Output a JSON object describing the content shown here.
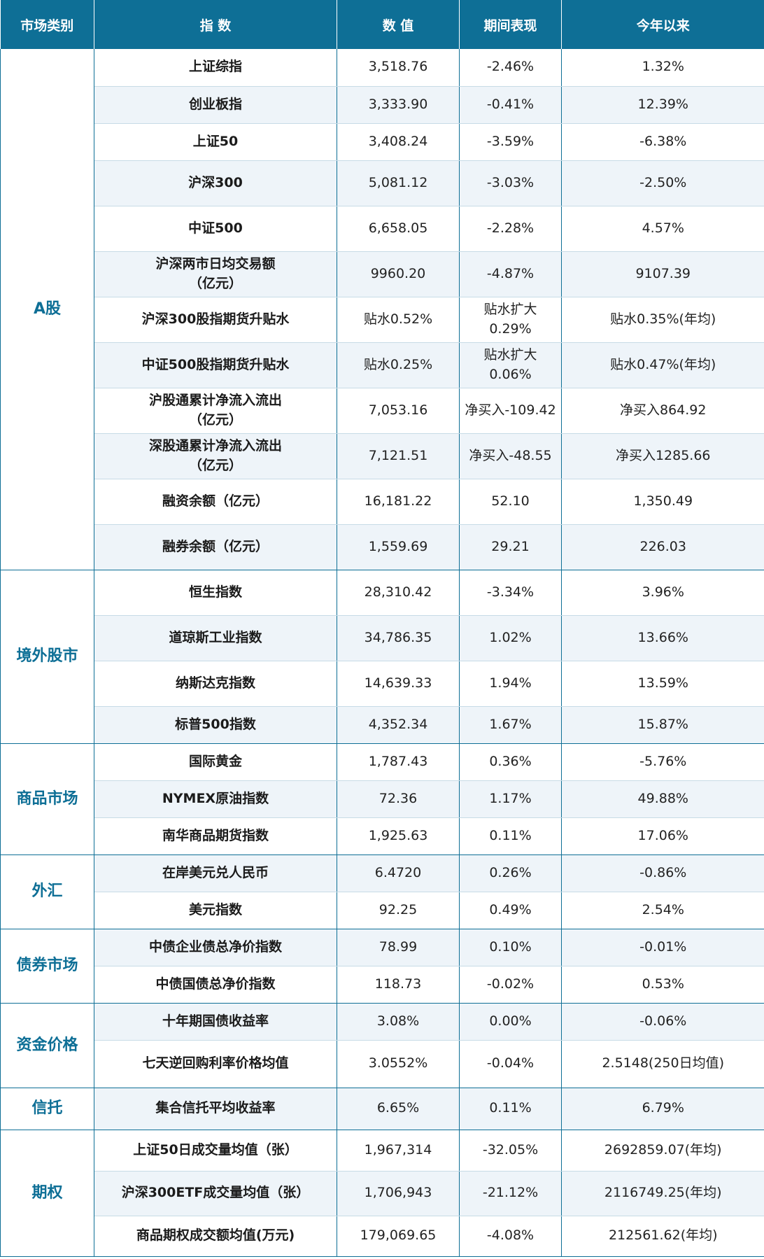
{
  "headers": [
    "市场类别",
    "指 数",
    "数 值",
    "期间表现",
    "今年以来"
  ],
  "groups": [
    {
      "category": "A股",
      "rows": [
        {
          "h": 53,
          "cells": [
            "上证综指",
            "3,518.76",
            "-2.46%",
            "1.32%"
          ]
        },
        {
          "h": 53,
          "cells": [
            "创业板指",
            "3,333.90",
            "-0.41%",
            "12.39%"
          ]
        },
        {
          "h": 53,
          "cells": [
            "上证50",
            "3,408.24",
            "-3.59%",
            "-6.38%"
          ]
        },
        {
          "h": 65,
          "cells": [
            "沪深300",
            "5,081.12",
            "-3.03%",
            "-2.50%"
          ]
        },
        {
          "h": 65,
          "cells": [
            "中证500",
            "6,658.05",
            "-2.28%",
            "4.57%"
          ]
        },
        {
          "h": 65,
          "cells": [
            "沪深两市日均交易额\n（亿元）",
            "9960.20",
            "-4.87%",
            "9107.39"
          ]
        },
        {
          "h": 65,
          "cells": [
            "沪深300股指期货升贴水",
            "贴水0.52%",
            "贴水扩大\n0.29%",
            "贴水0.35%(年均)"
          ]
        },
        {
          "h": 65,
          "cells": [
            "中证500股指期货升贴水",
            "贴水0.25%",
            "贴水扩大\n0.06%",
            "贴水0.47%(年均)"
          ]
        },
        {
          "h": 65,
          "cells": [
            "沪股通累计净流入流出\n（亿元）",
            "7,053.16",
            "净买入-109.42",
            "净买入864.92"
          ]
        },
        {
          "h": 65,
          "cells": [
            "深股通累计净流入流出\n（亿元）",
            "7,121.51",
            "净买入-48.55",
            "净买入1285.66"
          ]
        },
        {
          "h": 65,
          "cells": [
            "融资余额（亿元）",
            "16,181.22",
            "52.10",
            "1,350.49"
          ]
        },
        {
          "h": 65,
          "cells": [
            "融券余额（亿元）",
            "1,559.69",
            "29.21",
            "226.03"
          ]
        }
      ]
    },
    {
      "category": "境外股市",
      "rows": [
        {
          "h": 65,
          "cells": [
            "恒生指数",
            "28,310.42",
            "-3.34%",
            "3.96%"
          ]
        },
        {
          "h": 65,
          "cells": [
            "道琼斯工业指数",
            "34,786.35",
            "1.02%",
            "13.66%"
          ]
        },
        {
          "h": 65,
          "cells": [
            "纳斯达克指数",
            "14,639.33",
            "1.94%",
            "13.59%"
          ]
        },
        {
          "h": 53,
          "cells": [
            "标普500指数",
            "4,352.34",
            "1.67%",
            "15.87%"
          ]
        }
      ]
    },
    {
      "category": "商品市场",
      "rows": [
        {
          "h": 53,
          "cells": [
            "国际黄金",
            "1,787.43",
            "0.36%",
            "-5.76%"
          ]
        },
        {
          "h": 53,
          "cells": [
            "NYMEX原油指数",
            "72.36",
            "1.17%",
            "49.88%"
          ]
        },
        {
          "h": 53,
          "cells": [
            "南华商品期货指数",
            "1,925.63",
            "0.11%",
            "17.06%"
          ]
        }
      ]
    },
    {
      "category": "外汇",
      "rows": [
        {
          "h": 53,
          "cells": [
            "在岸美元兑人民币",
            "6.4720",
            "0.26%",
            "-0.86%"
          ]
        },
        {
          "h": 53,
          "cells": [
            "美元指数",
            "92.25",
            "0.49%",
            "2.54%"
          ]
        }
      ]
    },
    {
      "category": "债券市场",
      "rows": [
        {
          "h": 53,
          "cells": [
            "中债企业债总净价指数",
            "78.99",
            "0.10%",
            "-0.01%"
          ]
        },
        {
          "h": 53,
          "cells": [
            "中债国债总净价指数",
            "118.73",
            "-0.02%",
            "0.53%"
          ]
        }
      ]
    },
    {
      "category": "资金价格",
      "rows": [
        {
          "h": 53,
          "cells": [
            "十年期国债收益率",
            "3.08%",
            "0.00%",
            "-0.06%"
          ]
        },
        {
          "h": 68,
          "cells": [
            "七天逆回购利率价格均值",
            "3.0552%",
            "-0.04%",
            "2.5148(250日均值)"
          ]
        }
      ]
    },
    {
      "category": "信托",
      "rows": [
        {
          "h": 60,
          "cells": [
            "集合信托平均收益率",
            "6.65%",
            "0.11%",
            "6.79%"
          ]
        }
      ]
    },
    {
      "category": "期权",
      "rows": [
        {
          "h": 59,
          "cells": [
            "上证50日成交量均值（张）",
            "1,967,314",
            "-32.05%",
            "2692859.07(年均)"
          ]
        },
        {
          "h": 64,
          "cells": [
            "沪深300ETF成交量均值（张）",
            "1,706,943",
            "-21.12%",
            "2116749.25(年均)"
          ]
        },
        {
          "h": 58,
          "cells": [
            "商品期权成交额均值(万元)",
            "179,069.65",
            "-4.08%",
            "212561.62(年均)"
          ]
        }
      ]
    }
  ]
}
